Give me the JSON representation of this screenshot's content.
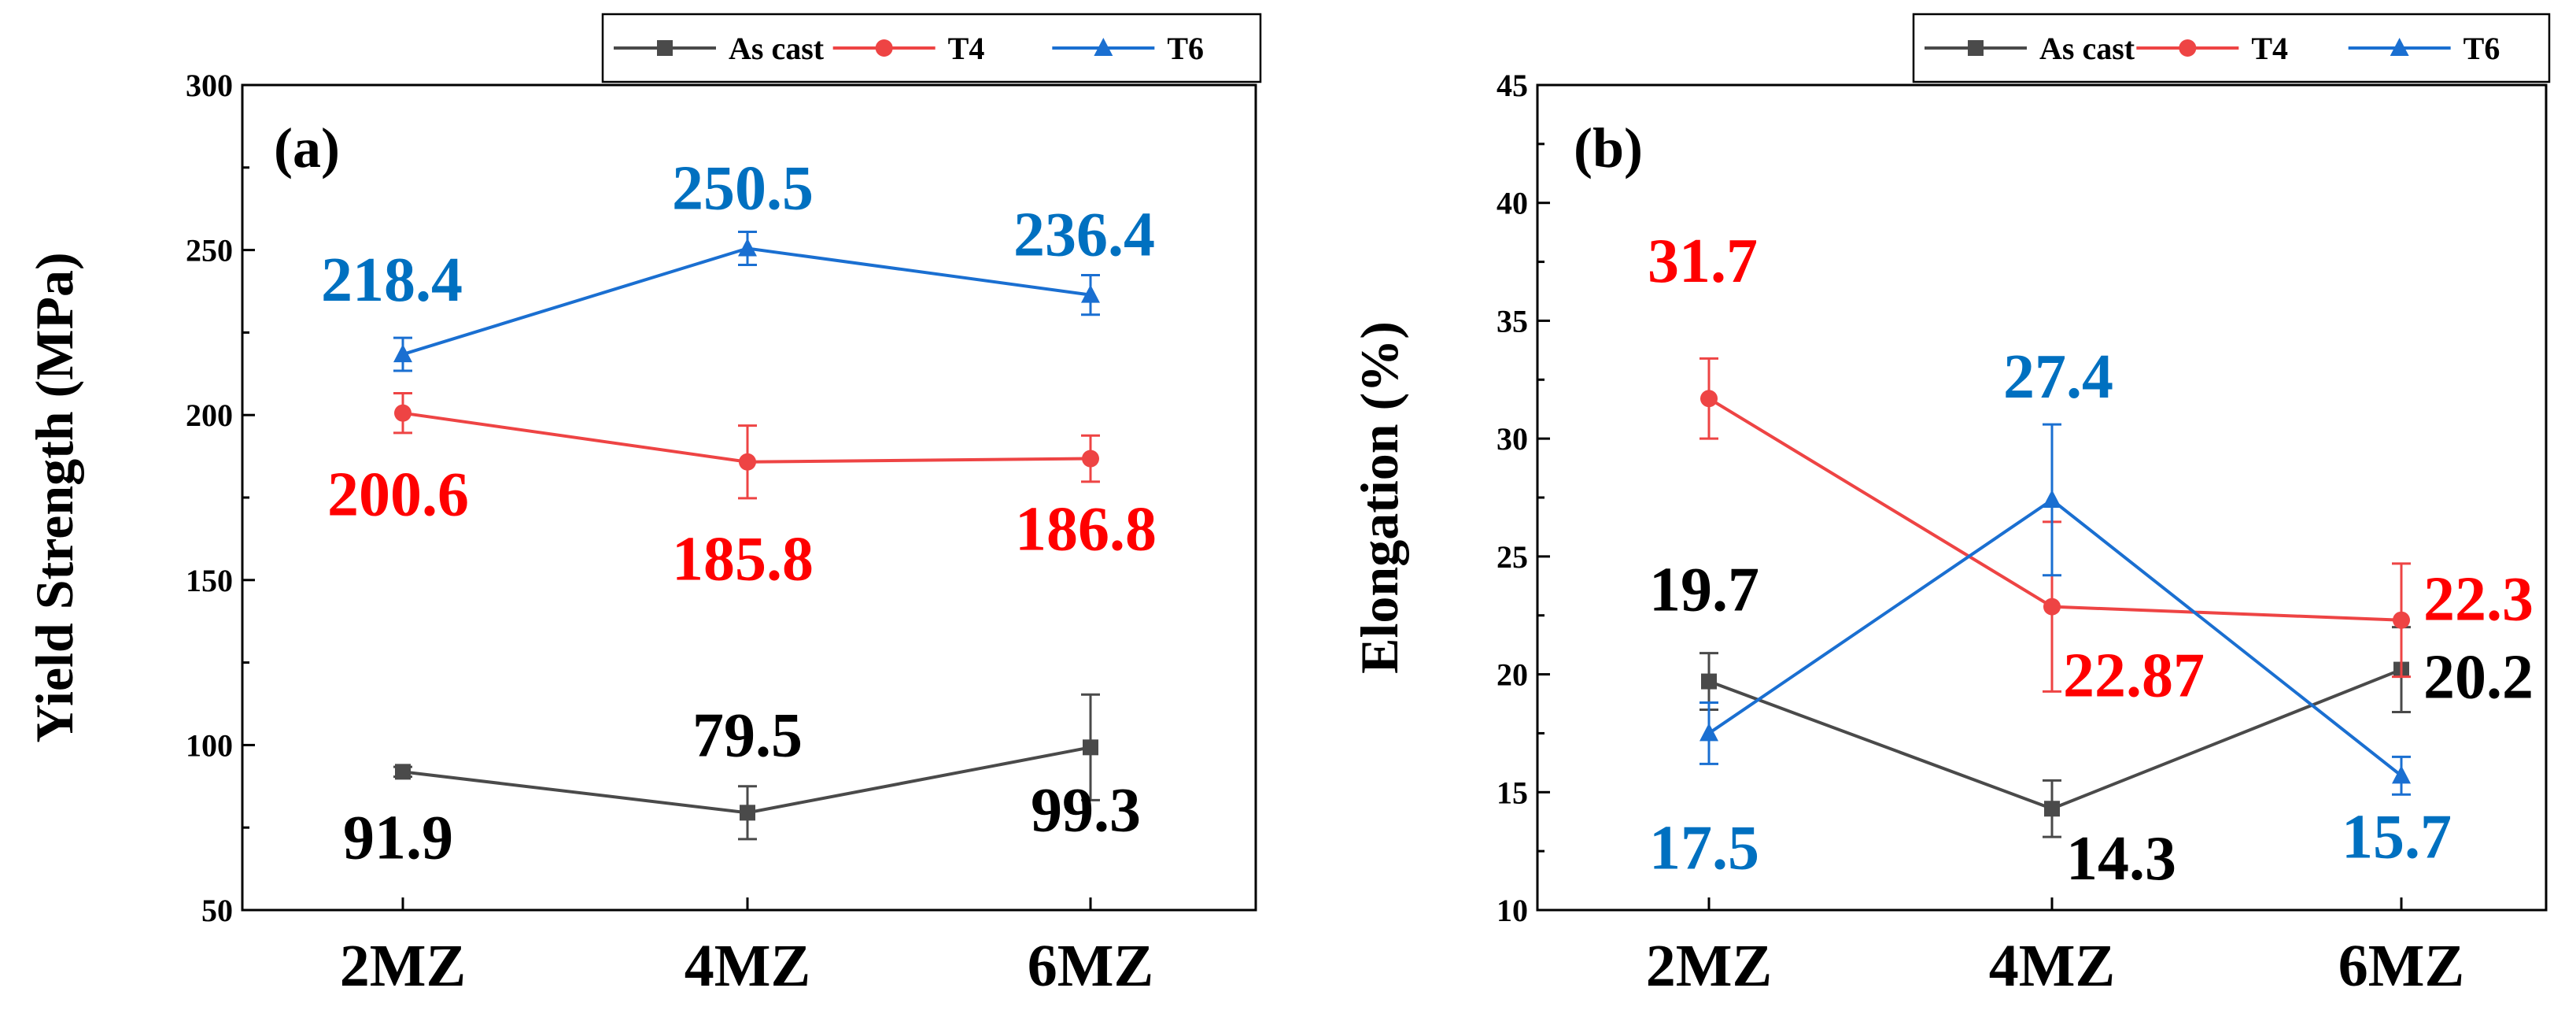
{
  "chart_data": [
    {
      "type": "line",
      "panel": "(a)",
      "categories": [
        "2MZ",
        "4MZ",
        "6MZ"
      ],
      "ylabel": "Yield Strength (MPa)",
      "xlabel": "",
      "ylim": [
        50,
        300
      ],
      "yticks": [
        50,
        100,
        150,
        200,
        250,
        300
      ],
      "legend": "top",
      "series": [
        {
          "name": "As cast",
          "color": "#4a4a4a",
          "marker": "square",
          "values": [
            91.9,
            79.5,
            99.3
          ],
          "errors": [
            1.5,
            8,
            16
          ],
          "labels": [
            "91.9",
            "79.5",
            "99.3"
          ],
          "label_color": "#000000"
        },
        {
          "name": "T4",
          "color": "#ee4444",
          "marker": "circle",
          "values": [
            200.6,
            185.8,
            186.8
          ],
          "errors": [
            6,
            11,
            7
          ],
          "labels": [
            "200.6",
            "185.8",
            "186.8"
          ],
          "label_color": "#ff0000"
        },
        {
          "name": "T6",
          "color": "#1a6fd1",
          "marker": "triangle",
          "values": [
            218.4,
            250.5,
            236.4
          ],
          "errors": [
            5,
            5,
            6
          ],
          "labels": [
            "218.4",
            "250.5",
            "236.4"
          ],
          "label_color": "#0070c0"
        }
      ]
    },
    {
      "type": "line",
      "panel": "(b)",
      "categories": [
        "2MZ",
        "4MZ",
        "6MZ"
      ],
      "ylabel": "Elongation (%)",
      "xlabel": "",
      "ylim": [
        10,
        45
      ],
      "yticks": [
        10,
        15,
        20,
        25,
        30,
        35,
        40,
        45
      ],
      "legend": "top",
      "series": [
        {
          "name": "As cast",
          "color": "#4a4a4a",
          "marker": "square",
          "values": [
            19.7,
            14.3,
            20.2
          ],
          "errors": [
            1.2,
            1.2,
            1.8
          ],
          "labels": [
            "19.7",
            "14.3",
            "20.2"
          ],
          "label_color": "#000000"
        },
        {
          "name": "T4",
          "color": "#ee4444",
          "marker": "circle",
          "values": [
            31.7,
            22.87,
            22.3
          ],
          "errors": [
            1.7,
            3.6,
            2.4
          ],
          "labels": [
            "31.7",
            "22.87",
            "22.3"
          ],
          "label_color": "#ff0000"
        },
        {
          "name": "T6",
          "color": "#1a6fd1",
          "marker": "triangle",
          "values": [
            17.5,
            27.4,
            15.7
          ],
          "errors": [
            1.3,
            3.2,
            0.8
          ],
          "labels": [
            "17.5",
            "27.4",
            "15.7"
          ],
          "label_color": "#0070c0"
        }
      ]
    }
  ]
}
